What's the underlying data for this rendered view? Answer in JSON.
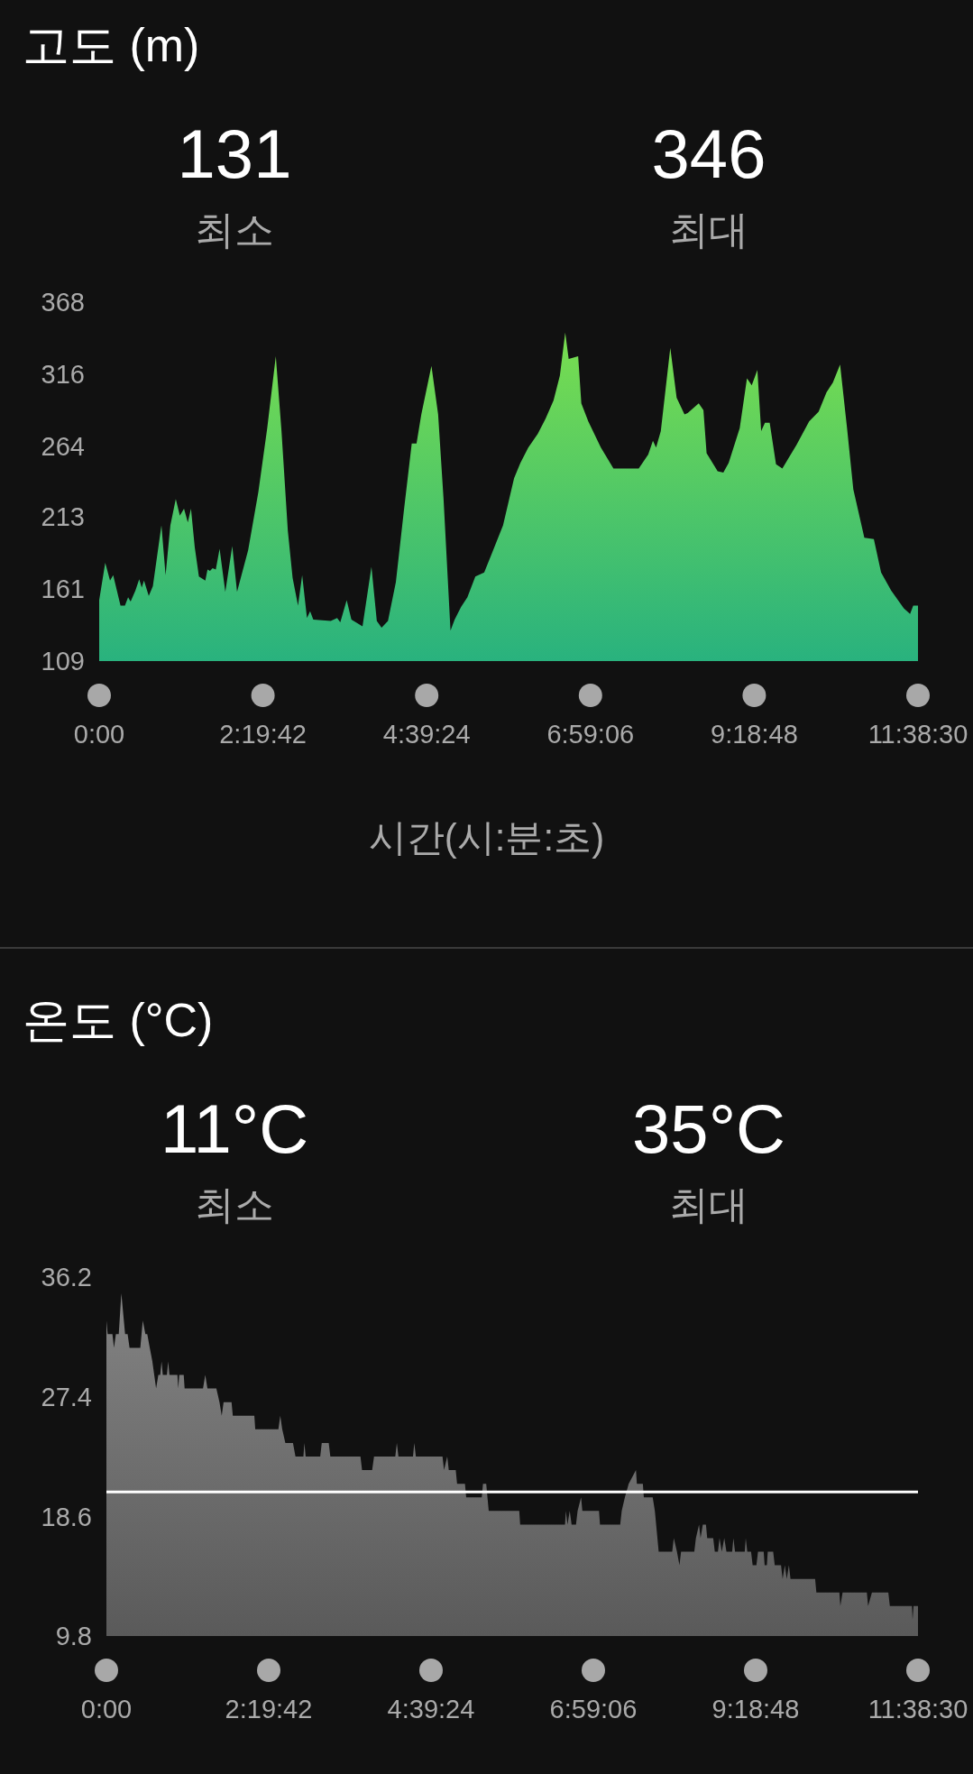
{
  "chart_data": [
    {
      "type": "area",
      "title": "고도 (m)",
      "xlabel": "시간(시:분:초)",
      "annotations": [
        "131",
        "최소",
        "346",
        "최대"
      ],
      "color": "#3fca57",
      "x": [
        0,
        0.086,
        0.154,
        0.199,
        0.303,
        0.366,
        0.411,
        0.447,
        0.515,
        0.569,
        0.605,
        0.637,
        0.705,
        0.763,
        0.885,
        0.944,
        1.012,
        1.089,
        1.147,
        1.206,
        1.26,
        1.305,
        1.359,
        1.418,
        1.509,
        1.54,
        1.576,
        1.612,
        1.658,
        1.712,
        1.793,
        1.892,
        1.96,
        2.118,
        2.263,
        2.389,
        2.511,
        2.592,
        2.682,
        2.75,
        2.827,
        2.886,
        2.954,
        2.999,
        3.044,
        3.293,
        3.383,
        3.428,
        3.519,
        3.586,
        3.744,
        3.871,
        3.947,
        4.015,
        4.106,
        4.218,
        4.331,
        4.444,
        4.512,
        4.58,
        4.724,
        4.819,
        4.896,
        4.995,
        5.054,
        5.145,
        5.235,
        5.348,
        5.474,
        5.585,
        5.742,
        5.899,
        5.989,
        6.101,
        6.236,
        6.348,
        6.46,
        6.55,
        6.626,
        6.675,
        6.81,
        6.855,
        6.954,
        7.133,
        7.312,
        7.671,
        7.806,
        7.873,
        7.918,
        7.985,
        8.12,
        8.21,
        8.322,
        8.367,
        8.524,
        8.591,
        8.636,
        8.793,
        8.874,
        8.95,
        9.107,
        9.21,
        9.278,
        9.358,
        9.412,
        9.466,
        9.533,
        9.623,
        9.713,
        9.915,
        10.094,
        10.229,
        10.341,
        10.431,
        10.534,
        10.633,
        10.722,
        10.879,
        11.014,
        11.117,
        11.26,
        11.44,
        11.529,
        11.574,
        11.6417
      ],
      "values": [
        153,
        180,
        167,
        171,
        149,
        149,
        155,
        152,
        160,
        168,
        162,
        167,
        156,
        163,
        207,
        171,
        207,
        226,
        214,
        219,
        209,
        219,
        191,
        170,
        167,
        175,
        174,
        176,
        175,
        190,
        159,
        192,
        159,
        189,
        231,
        277,
        329,
        275,
        203,
        169,
        149,
        171,
        140,
        145,
        139,
        138,
        140,
        137,
        153,
        139,
        134,
        177,
        138,
        133,
        138,
        166,
        217,
        266,
        266,
        287,
        322,
        287,
        226,
        131,
        139,
        148,
        155,
        170,
        173,
        187,
        207,
        241,
        252,
        263,
        273,
        284,
        297,
        315,
        346,
        327,
        329,
        295,
        282,
        263,
        248,
        248,
        258,
        268,
        263,
        275,
        335,
        299,
        287,
        288,
        295,
        290,
        259,
        246,
        245,
        252,
        277,
        313,
        308,
        319,
        275,
        281,
        281,
        251,
        248,
        265,
        282,
        289,
        303,
        310,
        323,
        277,
        233,
        198,
        197,
        173,
        160,
        147,
        143,
        149,
        149
      ],
      "xlim": [
        0,
        11.6417
      ],
      "xticks": [
        {
          "value": 0,
          "label": "0:00"
        },
        {
          "value": 2.3283,
          "label": "2:19:42"
        },
        {
          "value": 4.6567,
          "label": "4:39:24"
        },
        {
          "value": 6.985,
          "label": "6:59:06"
        },
        {
          "value": 9.3133,
          "label": "9:18:48"
        },
        {
          "value": 11.6417,
          "label": "11:38:30"
        }
      ],
      "ylim": [
        109,
        368
      ],
      "yticks": [
        109,
        161,
        213,
        264,
        316,
        368
      ]
    },
    {
      "type": "area",
      "title": "온도 (°C)",
      "annotations": [
        "11°C",
        "최소",
        "35°C",
        "최대"
      ],
      "color": "#717171",
      "x": [
        0,
        0.018,
        0.086,
        0.109,
        0.136,
        0.177,
        0.214,
        0.268,
        0.304,
        0.332,
        0.486,
        0.522,
        0.559,
        0.586,
        0.622,
        0.659,
        0.713,
        0.745,
        0.772,
        0.791,
        0.809,
        0.868,
        0.886,
        0.904,
        1.018,
        1.031,
        1.045,
        1.109,
        1.122,
        1.386,
        1.418,
        1.449,
        1.577,
        1.622,
        1.654,
        1.681,
        1.795,
        1.813,
        2.122,
        2.135,
        2.467,
        2.494,
        2.522,
        2.567,
        2.676,
        2.712,
        2.826,
        2.84,
        2.858,
        3.067,
        3.089,
        3.189,
        3.212,
        3.644,
        3.667,
        3.812,
        3.839,
        4.144,
        4.166,
        4.189,
        4.398,
        4.416,
        4.439,
        4.821,
        4.843,
        4.889,
        4.911,
        5.011,
        5.03,
        5.143,
        5.161,
        5.384,
        5.402,
        5.448,
        5.484,
        5.922,
        5.935,
        6.578,
        6.591,
        6.614,
        6.646,
        6.673,
        6.736,
        6.759,
        6.809,
        6.827,
        7.066,
        7.08,
        7.37,
        7.392,
        7.437,
        7.492,
        7.596,
        7.609,
        7.695,
        7.709,
        7.836,
        7.867,
        7.922,
        8.116,
        8.139,
        8.184,
        8.22,
        8.243,
        8.433,
        8.456,
        8.501,
        8.523,
        8.555,
        8.6,
        8.618,
        8.704,
        8.727,
        8.772,
        8.795,
        8.827,
        8.863,
        8.894,
        8.976,
        8.994,
        9.017,
        9.157,
        9.171,
        9.193,
        9.247,
        9.27,
        9.324,
        9.347,
        9.428,
        9.442,
        9.474,
        9.487,
        9.564,
        9.587,
        9.677,
        9.7,
        9.732,
        9.759,
        9.79,
        9.813,
        10.166,
        10.184,
        10.514,
        10.528,
        10.56,
        10.908,
        10.926,
        10.981,
        11.216,
        11.238,
        11.555,
        11.564,
        11.578,
        11.6417
      ],
      "values": [
        33,
        32,
        32,
        31,
        32,
        32,
        35,
        32,
        32,
        31,
        31,
        33,
        32,
        32,
        31,
        30,
        28,
        29,
        29,
        30,
        29,
        29,
        30,
        29,
        29,
        28,
        29,
        29,
        28,
        28,
        29,
        28,
        28,
        27,
        26,
        27,
        27,
        26,
        26,
        25,
        25,
        26,
        25,
        24,
        24,
        23,
        23,
        24,
        23,
        23,
        24,
        24,
        23,
        23,
        22,
        22,
        23,
        23,
        24,
        23,
        23,
        24,
        23,
        23,
        22,
        23,
        22,
        22,
        21,
        21,
        20,
        20,
        21,
        21,
        19,
        19,
        18,
        18,
        19,
        18,
        19,
        18,
        18,
        19,
        20,
        19,
        19,
        18,
        18,
        19,
        20,
        21,
        22,
        21,
        21,
        20,
        20,
        19,
        16,
        16,
        17,
        16,
        15,
        16,
        16,
        17,
        18,
        17,
        18,
        18,
        17,
        17,
        16,
        16,
        17,
        16,
        17,
        16,
        16,
        17,
        16,
        16,
        17,
        16,
        16,
        15,
        15,
        16,
        16,
        15,
        15,
        16,
        16,
        15,
        15,
        14,
        15,
        14,
        15,
        14,
        14,
        13,
        13,
        12,
        13,
        13,
        12,
        13,
        13,
        12,
        12,
        11,
        12,
        12
      ],
      "xlim": [
        0,
        11.6417
      ],
      "xticks": [
        {
          "value": 0,
          "label": "0:00"
        },
        {
          "value": 2.3283,
          "label": "2:19:42"
        },
        {
          "value": 4.6567,
          "label": "4:39:24"
        },
        {
          "value": 6.985,
          "label": "6:59:06"
        },
        {
          "value": 9.3133,
          "label": "9:18:48"
        },
        {
          "value": 11.6417,
          "label": "11:38:30"
        }
      ],
      "ylim": [
        9.8,
        36.2
      ],
      "yticks": [
        9.8,
        18.6,
        27.4,
        36.2
      ],
      "ref_lines": [
        {
          "axis": "y",
          "value": 20.4,
          "color": "#ffffff"
        }
      ]
    }
  ]
}
